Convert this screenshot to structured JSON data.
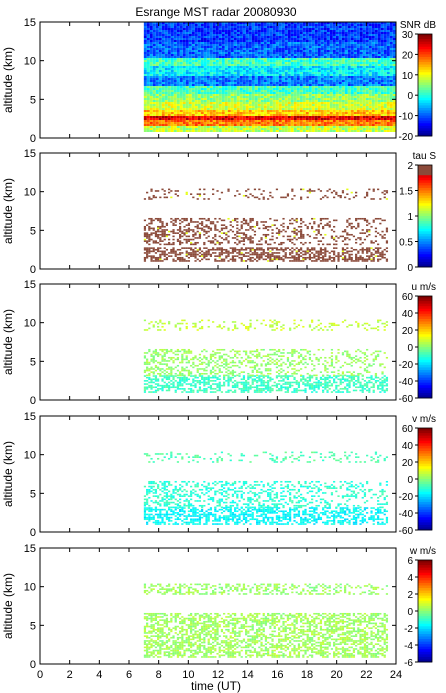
{
  "title": "Esrange MST radar 20080930",
  "xlabel": "time (UT)",
  "x_ticks": [
    "0",
    "2",
    "4",
    "6",
    "8",
    "10",
    "12",
    "14",
    "16",
    "18",
    "20",
    "22",
    "24"
  ],
  "chart_data": [
    {
      "type": "heatmap",
      "panel": "snr",
      "ylabel": "altitude (km)",
      "xlim": [
        0,
        24
      ],
      "ylim": [
        0,
        15
      ],
      "y_ticks": [
        "0",
        "5",
        "10",
        "15"
      ],
      "data_start_time": 7,
      "colorbar": {
        "label": "SNR dB",
        "range": [
          -20,
          30
        ],
        "ticks": [
          "30",
          "20",
          "10",
          "0",
          "-10",
          "-20"
        ]
      },
      "layers": [
        {
          "alt": [
            0.8,
            1.6
          ],
          "value": 8
        },
        {
          "alt": [
            1.6,
            2.2
          ],
          "value": 18
        },
        {
          "alt": [
            2.2,
            2.8
          ],
          "value": 25
        },
        {
          "alt": [
            2.8,
            3.6
          ],
          "value": 14
        },
        {
          "alt": [
            3.6,
            4.6
          ],
          "value": 9
        },
        {
          "alt": [
            4.6,
            5.6
          ],
          "value": 6
        },
        {
          "alt": [
            5.6,
            6.6
          ],
          "value": 2
        },
        {
          "alt": [
            6.6,
            8.0
          ],
          "value": -8
        },
        {
          "alt": [
            8.0,
            9.2
          ],
          "value": -2
        },
        {
          "alt": [
            9.2,
            10.4
          ],
          "value": 2
        },
        {
          "alt": [
            10.4,
            12.5
          ],
          "value": -9
        },
        {
          "alt": [
            12.5,
            15.0
          ],
          "value": -11
        }
      ]
    },
    {
      "type": "heatmap",
      "panel": "tau",
      "ylabel": "altitude (km)",
      "xlim": [
        0,
        24
      ],
      "ylim": [
        0,
        15
      ],
      "y_ticks": [
        "0",
        "5",
        "10",
        "15"
      ],
      "data_start_time": 7,
      "colorbar": {
        "label": "tau S",
        "range": [
          0,
          2
        ],
        "ticks": [
          "2",
          "1.5",
          "1",
          "0.5",
          "0"
        ]
      },
      "layers": [
        {
          "alt": [
            1.0,
            2.8
          ],
          "value": 2
        },
        {
          "alt": [
            3.2,
            6.6
          ],
          "value": 2
        },
        {
          "alt": [
            9.0,
            10.4
          ],
          "value": 2
        }
      ]
    },
    {
      "type": "heatmap",
      "panel": "u",
      "ylabel": "altitude (km)",
      "xlim": [
        0,
        24
      ],
      "ylim": [
        0,
        15
      ],
      "y_ticks": [
        "0",
        "5",
        "10",
        "15"
      ],
      "data_start_time": 7,
      "colorbar": {
        "label": "u m/s",
        "range": [
          -60,
          60
        ],
        "ticks": [
          "60",
          "40",
          "20",
          "0",
          "-20",
          "-40",
          "-60"
        ]
      },
      "layers": [
        {
          "alt": [
            1.0,
            3.2
          ],
          "value": -8
        },
        {
          "alt": [
            3.2,
            6.6
          ],
          "value": 3
        },
        {
          "alt": [
            9.0,
            10.4
          ],
          "value": 8
        }
      ]
    },
    {
      "type": "heatmap",
      "panel": "v",
      "ylabel": "altitude (km)",
      "xlim": [
        0,
        24
      ],
      "ylim": [
        0,
        15
      ],
      "y_ticks": [
        "0",
        "5",
        "10",
        "15"
      ],
      "data_start_time": 7,
      "colorbar": {
        "label": "v m/s",
        "range": [
          -60,
          60
        ],
        "ticks": [
          "60",
          "40",
          "20",
          "0",
          "-20",
          "-40",
          "-60"
        ]
      },
      "layers": [
        {
          "alt": [
            1.0,
            3.2
          ],
          "value": -15
        },
        {
          "alt": [
            3.2,
            6.6
          ],
          "value": -10
        },
        {
          "alt": [
            9.0,
            10.4
          ],
          "value": -6
        }
      ]
    },
    {
      "type": "heatmap",
      "panel": "w",
      "ylabel": "altitude (km)",
      "xlim": [
        0,
        24
      ],
      "ylim": [
        0,
        15
      ],
      "y_ticks": [
        "0",
        "5",
        "10",
        "15"
      ],
      "data_start_time": 7,
      "colorbar": {
        "label": "w m/s",
        "range": [
          -6,
          6
        ],
        "ticks": [
          "6",
          "4",
          "2",
          "0",
          "-2",
          "-4",
          "-6"
        ]
      },
      "layers": [
        {
          "alt": [
            1.0,
            6.6
          ],
          "value": 0.4
        },
        {
          "alt": [
            9.0,
            10.4
          ],
          "value": 0.3
        }
      ]
    }
  ]
}
